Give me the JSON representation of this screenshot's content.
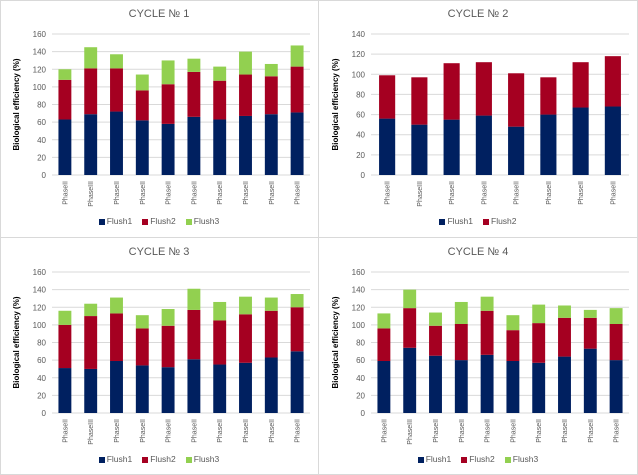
{
  "colors": {
    "Flush1": "#002060",
    "Flush2": "#a50021",
    "Flush3": "#92d050",
    "grid": "#d9d9d9"
  },
  "chart_data": [
    {
      "type": "bar",
      "stacked": true,
      "title": "CYCLE № 1",
      "xlabel": "",
      "ylabel": "Biological efficiency (%)",
      "ylim": [
        0,
        160
      ],
      "yticks": [
        0,
        20,
        40,
        60,
        80,
        100,
        120,
        140,
        160
      ],
      "grid": true,
      "legend": "bottom",
      "categories": [
        "PhaseII",
        "PhaseIII",
        "PhaseII",
        "PhaseII",
        "PhaseII",
        "PhaseII",
        "PhaseII",
        "PhaseII",
        "PhaseII",
        "PhaseII"
      ],
      "series": [
        {
          "name": "Flush1",
          "values": [
            63,
            69,
            72,
            62,
            58,
            66,
            63,
            67,
            69,
            71
          ]
        },
        {
          "name": "Flush2",
          "values": [
            45,
            52,
            49,
            34,
            45,
            51,
            44,
            47,
            43,
            52
          ]
        },
        {
          "name": "Flush3",
          "values": [
            12,
            24,
            16,
            18,
            27,
            15,
            16,
            26,
            14,
            24
          ]
        }
      ]
    },
    {
      "type": "bar",
      "stacked": true,
      "title": "CYCLE № 2",
      "xlabel": "",
      "ylabel": "Biological efficiency (%)",
      "ylim": [
        0,
        140
      ],
      "yticks": [
        0,
        20,
        40,
        60,
        80,
        100,
        120,
        140
      ],
      "grid": true,
      "legend": "bottom",
      "categories": [
        "PhaseII",
        "PhaseIII",
        "PhaseII",
        "PhaseII",
        "PhaseII",
        "PhaseII",
        "PhaseII",
        "PhaseII"
      ],
      "series": [
        {
          "name": "Flush1",
          "values": [
            56,
            50,
            55,
            59,
            48,
            60,
            67,
            68
          ]
        },
        {
          "name": "Flush2",
          "values": [
            43,
            47,
            56,
            53,
            53,
            37,
            45,
            50
          ]
        }
      ]
    },
    {
      "type": "bar",
      "stacked": true,
      "title": "CYCLE № 3",
      "xlabel": "",
      "ylabel": "Biological efficiency (%)",
      "ylim": [
        0,
        160
      ],
      "yticks": [
        0,
        20,
        40,
        60,
        80,
        100,
        120,
        140,
        160
      ],
      "grid": true,
      "legend": "bottom",
      "categories": [
        "PhaseII",
        "PhaseIII",
        "PhaseII",
        "PhaseII",
        "PhaseII",
        "PhaseII",
        "PhaseII",
        "PhaseII",
        "PhaseII",
        "PhaseII"
      ],
      "series": [
        {
          "name": "Flush1",
          "values": [
            51,
            50,
            59,
            54,
            52,
            61,
            55,
            57,
            63,
            70
          ]
        },
        {
          "name": "Flush2",
          "values": [
            49,
            60,
            54,
            42,
            47,
            56,
            50,
            55,
            53,
            50
          ]
        },
        {
          "name": "Flush3",
          "values": [
            16,
            14,
            18,
            15,
            19,
            24,
            21,
            20,
            15,
            15
          ]
        }
      ]
    },
    {
      "type": "bar",
      "stacked": true,
      "title": "CYCLE № 4",
      "xlabel": "",
      "ylabel": "Biological efficiency (%)",
      "ylim": [
        0,
        160
      ],
      "yticks": [
        0,
        20,
        40,
        60,
        80,
        100,
        120,
        140,
        160
      ],
      "grid": true,
      "legend": "bottom",
      "categories": [
        "PhaseII",
        "PhaseIII",
        "PhaseII",
        "PhaseII",
        "PhaseII",
        "PhaseII",
        "PhaseII",
        "PhaseII",
        "PhaseII",
        "PhaseII"
      ],
      "series": [
        {
          "name": "Flush1",
          "values": [
            59,
            74,
            65,
            60,
            66,
            59,
            57,
            64,
            73,
            60
          ]
        },
        {
          "name": "Flush2",
          "values": [
            37,
            45,
            34,
            41,
            50,
            35,
            45,
            44,
            35,
            41
          ]
        },
        {
          "name": "Flush3",
          "values": [
            17,
            21,
            15,
            25,
            16,
            17,
            21,
            14,
            9,
            18
          ]
        }
      ]
    }
  ]
}
